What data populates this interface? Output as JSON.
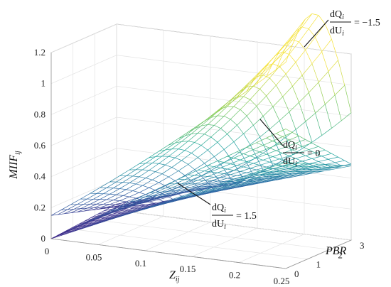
{
  "chart_data": {
    "type": "surface3d",
    "title": "",
    "xlabel": "Z",
    "xlabel_sub": "ij",
    "ylabel": "PBR",
    "zlabel": "MIIF",
    "zlabel_sub": "ij",
    "x_ticks": [
      "0",
      "0.05",
      "0.1",
      "0.15",
      "0.2",
      "0.25"
    ],
    "y_ticks": [
      "0",
      "1",
      "2",
      "3"
    ],
    "z_ticks": [
      "0",
      "0.2",
      "0.4",
      "0.6",
      "0.8",
      "1",
      "1.2"
    ],
    "xlim": [
      0,
      0.25
    ],
    "ylim": [
      0,
      3
    ],
    "zlim": [
      0,
      1.2
    ],
    "grid": true,
    "colormap": [
      "#3e2a8a",
      "#2f6fa8",
      "#22a7a0",
      "#7fcb5a",
      "#f5e23a"
    ],
    "series": [
      {
        "id": "s_neg",
        "label_lhs_top": "dQ",
        "label_lhs_top_sub": "i",
        "label_lhs_bot": "dU",
        "label_lhs_bot_sub": "i",
        "label_rhs": "= −1.5",
        "dqdu": -1.5
      },
      {
        "id": "s_zero",
        "label_lhs_top": "dQ",
        "label_lhs_top_sub": "i",
        "label_lhs_bot": "dU",
        "label_lhs_bot_sub": "i",
        "label_rhs": "= 0",
        "dqdu": 0
      },
      {
        "id": "s_pos",
        "label_lhs_top": "dQ",
        "label_lhs_top_sub": "i",
        "label_lhs_bot": "dU",
        "label_lhs_bot_sub": "i",
        "label_rhs": "= 1.5",
        "dqdu": 1.5
      }
    ]
  }
}
